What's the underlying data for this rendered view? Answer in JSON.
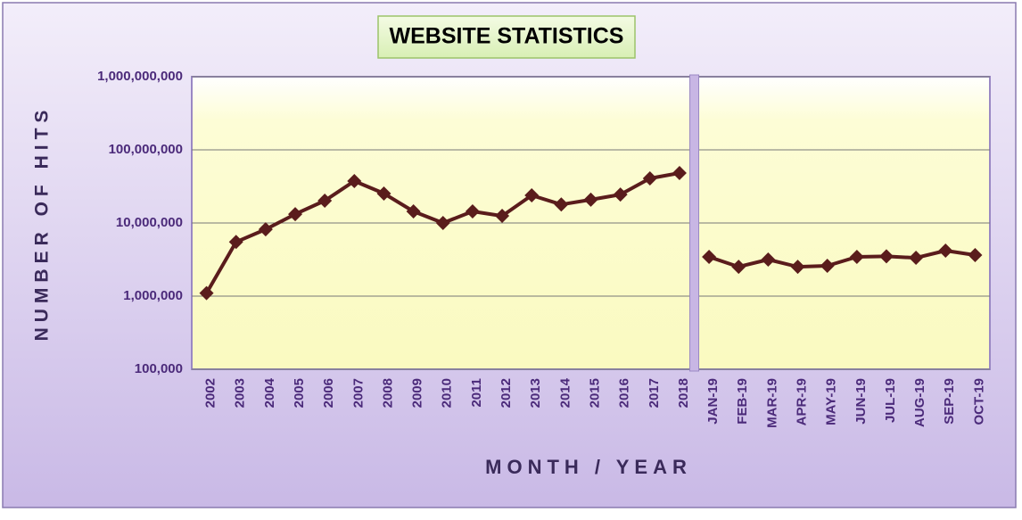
{
  "chart_data": {
    "type": "line",
    "title": "WEBSITE STATISTICS",
    "y_label": "NUMBER OF HITS",
    "x_label": "MONTH / YEAR",
    "categories": [
      "2002",
      "2003",
      "2004",
      "2005",
      "2006",
      "2007",
      "2008",
      "2009",
      "2010",
      "2011",
      "2012",
      "2013",
      "2014",
      "2015",
      "2016",
      "2017",
      "2018",
      "JAN-19",
      "FEB-19",
      "MAR-19",
      "APR-19",
      "MAY-19",
      "JUN-19",
      "JUL-19",
      "AUG-19",
      "SEP-19",
      "OCT-19"
    ],
    "series": [
      {
        "color": "#5a1c1c",
        "values": [
          1100000,
          5500000,
          8200000,
          13200000,
          20200000,
          37400000,
          25300000,
          14400000,
          10000000,
          14400000,
          12500000,
          23900000,
          17900000,
          20800000,
          24500000,
          40700000,
          48200000,
          null,
          null,
          null,
          null,
          null,
          null,
          null,
          null,
          null,
          null
        ]
      },
      {
        "color": "#5a1c1c",
        "values": [
          null,
          null,
          null,
          null,
          null,
          null,
          null,
          null,
          null,
          null,
          null,
          null,
          null,
          null,
          null,
          null,
          null,
          3440000,
          2520000,
          3160000,
          2520000,
          2600000,
          3440000,
          3500000,
          3340000,
          4190000,
          3640000
        ]
      }
    ],
    "log_scale": true,
    "ylim": [
      100000,
      1000000000
    ],
    "yticks": [
      {
        "value": 100000,
        "label": "100,000"
      },
      {
        "value": 1000000,
        "label": "1,000,000"
      },
      {
        "value": 10000000,
        "label": "10,000,000"
      },
      {
        "value": 100000000,
        "label": "100,000,000"
      },
      {
        "value": 1000000000,
        "label": "1,000,000,000"
      }
    ],
    "grid": true
  }
}
